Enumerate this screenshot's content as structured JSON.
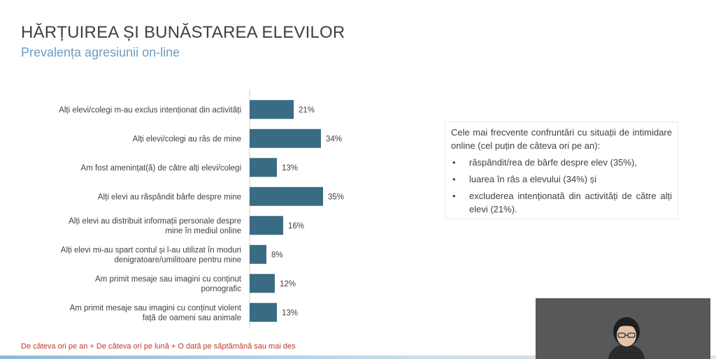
{
  "slide": {
    "title": "HĂRȚUIREA ȘI BUNĂSTAREA ELEVILOR",
    "subtitle": "Prevalența agresiunii on-line"
  },
  "chart_data": {
    "type": "bar",
    "orientation": "horizontal",
    "categories": [
      [
        "Alți elevi/colegi m-au exclus intenționat din activități"
      ],
      [
        "Alți elevi/colegi au râs de mine"
      ],
      [
        "Am fost amenințat(ă) de către alți elevi/colegi"
      ],
      [
        "Alți elevi au răspândit bârfe despre mine"
      ],
      [
        "Alți elevi au distribuit informații personale despre",
        "mine în mediul online"
      ],
      [
        "Alți elevi mi-au spart contul și l-au utilizat în moduri",
        "denigratoare/umilitoare pentru mine"
      ],
      [
        "Am primit mesaje sau imagini cu conținut",
        "pornografic"
      ],
      [
        "Am primit mesaje sau imagini cu conținut violent",
        "față de oameni sau animale"
      ]
    ],
    "values": [
      21,
      34,
      13,
      35,
      16,
      8,
      12,
      13
    ],
    "value_labels": [
      "21%",
      "34%",
      "13%",
      "35%",
      "16%",
      "8%",
      "12%",
      "13%"
    ],
    "unit": "%",
    "bar_color": "#3a6b84",
    "xlim": [
      0,
      35
    ],
    "grid": false,
    "legend": "none"
  },
  "summary": {
    "intro": "Cele mai frecvente confruntări cu situații de intimidare online (cel puțin de câteva ori pe an):",
    "bullet_char": "•",
    "items": [
      "răspândit/rea de bârfe despre elev (35%),",
      "luarea în râs a elevului (34%) și",
      "excluderea intenționată din activități de către alți elevi (21%)."
    ]
  },
  "footnote": "De câteva ori pe an + De câteva ori pe lună + O dată pe săptămână sau mai des",
  "colors": {
    "title": "#3f3f3f",
    "subtitle": "#6b9cc2",
    "bar": "#3a6b84",
    "footnote": "#c0392b"
  }
}
